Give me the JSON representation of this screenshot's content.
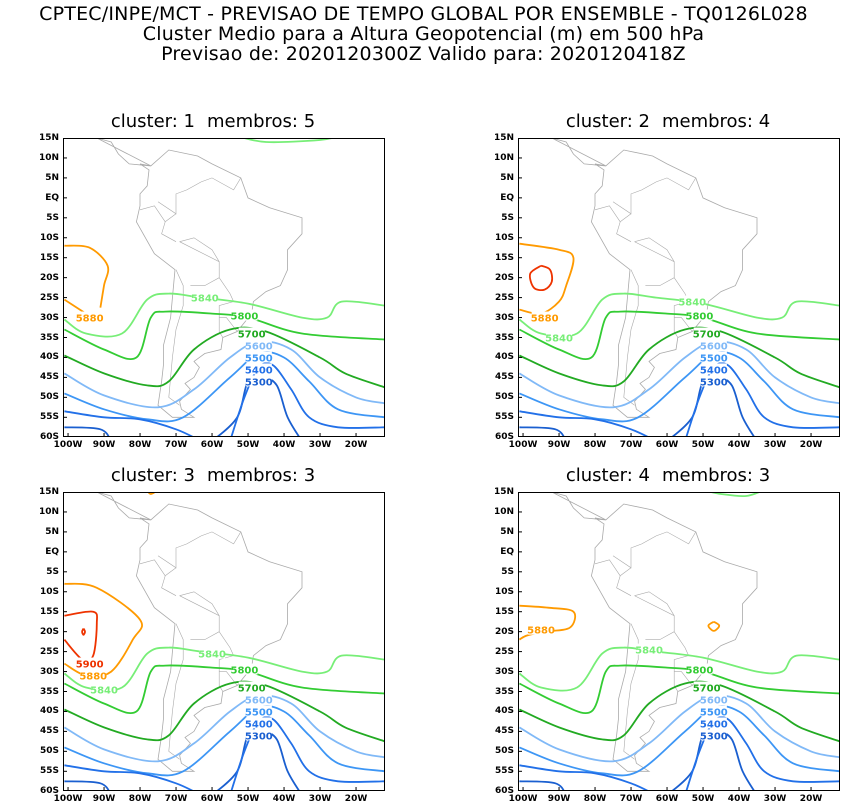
{
  "header": {
    "line1": "CPTEC/INPE/MCT - PREVISAO DE TEMPO GLOBAL POR ENSEMBLE - TQ0126L028",
    "line2": "Cluster Medio para a Altura Geopotencial (m) em 500 hPa",
    "line3": "Previsao de: 2020120300Z    Valido para: 2020120418Z"
  },
  "axes": {
    "lat_labels": [
      "15N",
      "10N",
      "5N",
      "EQ",
      "5S",
      "10S",
      "15S",
      "20S",
      "25S",
      "30S",
      "35S",
      "40S",
      "45S",
      "50S",
      "55S",
      "60S"
    ],
    "lon_labels": [
      "100W",
      "90W",
      "80W",
      "70W",
      "60W",
      "50W",
      "40W",
      "30W",
      "20W"
    ]
  },
  "colors": {
    "5300": "#1a5fd0",
    "5400": "#2270e8",
    "5500": "#3d96f5",
    "5600": "#80b9f7",
    "5700": "#22aa22",
    "5800": "#33cc33",
    "5840": "#77ee77",
    "5880": "#ff9a00",
    "5900": "#ee3300",
    "coast": "#aaaaaa"
  },
  "panels": [
    {
      "cluster": "cluster: 1",
      "membros": "membros: 5",
      "labels": [
        "5880",
        "5840",
        "5800",
        "5700",
        "5600",
        "5500",
        "5400",
        "5300"
      ]
    },
    {
      "cluster": "cluster: 2",
      "membros": "membros: 4",
      "labels": [
        "5880",
        "5840",
        "5840",
        "5800",
        "5700",
        "5600",
        "5500",
        "5400",
        "5300"
      ]
    },
    {
      "cluster": "cluster: 3",
      "membros": "membros: 3",
      "labels": [
        "5900",
        "5880",
        "5840",
        "5840",
        "5800",
        "5700",
        "5600",
        "5500",
        "5400",
        "5300"
      ]
    },
    {
      "cluster": "cluster: 4",
      "membros": "membros: 3",
      "labels": [
        "5880",
        "5840",
        "5800",
        "5700",
        "5600",
        "5500",
        "5400",
        "5300"
      ]
    }
  ]
}
